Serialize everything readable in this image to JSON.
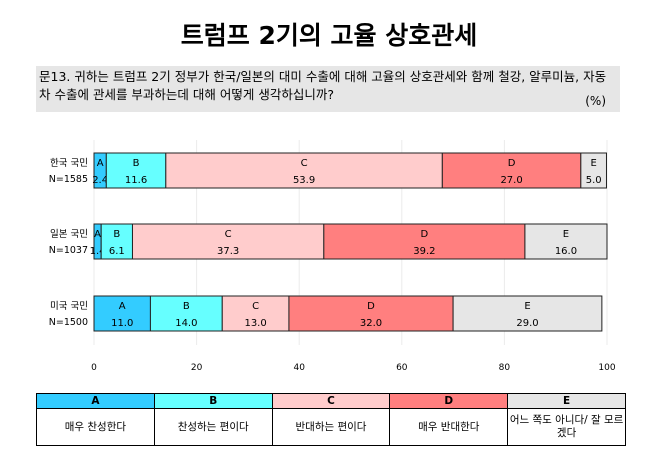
{
  "title": "트럼프 2기의 고율 상호관세",
  "question": "문13. 귀하는 트럼프 2기 정부가 한국/일본의 대미 수출에 대해 고율의 상호관세와 함께 철강, 알루미늄, 자동차 수출에 관세를 부과하는데 대해 어떻게 생각하십니까?",
  "unit": "(%)",
  "chart_data": {
    "type": "bar",
    "orientation": "horizontal",
    "stacked": true,
    "categories": [
      "A",
      "B",
      "C",
      "D",
      "E"
    ],
    "colors": [
      "#33ccff",
      "#66ffff",
      "#ffcccc",
      "#ff7f7f",
      "#e6e6e6"
    ],
    "xlim": [
      0,
      100
    ],
    "xticks": [
      0,
      20,
      40,
      60,
      80,
      100
    ],
    "grid": true,
    "rows": [
      {
        "label": "한국 국민",
        "n": "N=1585",
        "values": [
          2.4,
          11.6,
          53.9,
          27.0,
          5.0
        ]
      },
      {
        "label": "일본 국민",
        "n": "N=1037",
        "values": [
          1.4,
          6.1,
          37.3,
          39.2,
          16.0
        ]
      },
      {
        "label": "미국 국민",
        "n": "N=1500",
        "values": [
          11.0,
          14.0,
          13.0,
          32.0,
          29.0
        ]
      }
    ]
  },
  "legend": [
    {
      "key": "A",
      "label": "매우 찬성한다"
    },
    {
      "key": "B",
      "label": "찬성하는 편이다"
    },
    {
      "key": "C",
      "label": "반대하는 편이다"
    },
    {
      "key": "D",
      "label": "매우 반대한다"
    },
    {
      "key": "E",
      "label": "어느 쪽도 아니다/ 잘 모르겠다"
    }
  ]
}
